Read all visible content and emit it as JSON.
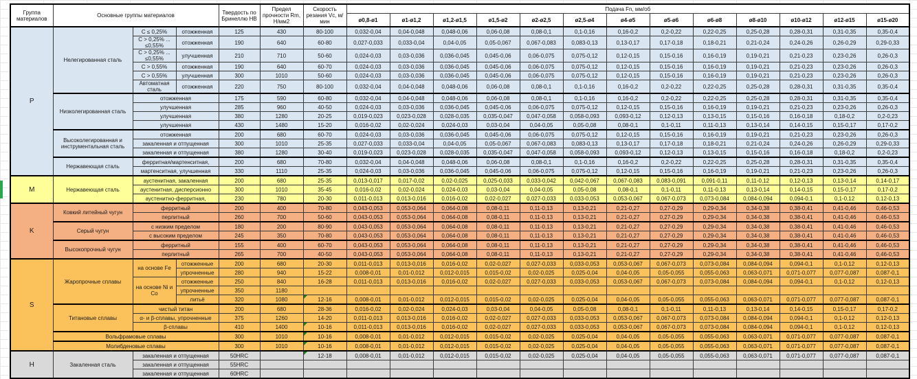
{
  "header": {
    "col_group": "Группа материалов",
    "col_main": "Основные группы материалов",
    "col_hardness": "Твердость по Бринеллю НВ",
    "col_strength": "Предел прочности Rm, Н/мм2",
    "col_speed": "Скорость резания Vc, м/мин",
    "col_feed": "Подача Fn, мм/об",
    "diameters": [
      "ø0,8-ø1",
      "ø1-ø1,2",
      "ø1,2-ø1,5",
      "ø1,5-ø2",
      "ø2-ø2,5",
      "ø2,5-ø4",
      "ø4-ø5",
      "ø5-ø6",
      "ø6-ø8",
      "ø8-ø10",
      "ø10-ø12",
      "ø12-ø15",
      "ø15-ø20"
    ]
  },
  "colors": {
    "section_p": "#d9e5f1",
    "section_m": "#ffff99",
    "section_k": "#f4b083",
    "section_s": "#fbc25b",
    "section_h": "#d9d9d9",
    "flag_triangle": "#1e7b1e",
    "edge_highlight": "#2ea44e"
  },
  "feed_profiles": {
    "A": [
      "0,032-0,04",
      "0,04-0,048",
      "0,048-0,06",
      "0,06-0,08",
      "0,08-0,1",
      "0,1-0,16",
      "0,16-0,2",
      "0,2-0,22",
      "0,22-0,25",
      "0,25-0,28",
      "0,28-0,31",
      "0,31-0,35",
      "0,35-0,4"
    ],
    "B": [
      "0,027-0,033",
      "0,033-0,04",
      "0,04-0,05",
      "0,05-0,067",
      "0,067-0,083",
      "0,083-0,13",
      "0,13-0,17",
      "0,17-0,18",
      "0,18-0,21",
      "0,21-0,24",
      "0,24-0,26",
      "0,26-0,29",
      "0,29-0,33"
    ],
    "C": [
      "0,024-0,03",
      "0,03-0,036",
      "0,036-0,045",
      "0,045-0,06",
      "0,06-0,075",
      "0,075-0,12",
      "0,12-0,15",
      "0,15-0,16",
      "0,16-0,19",
      "0,19-0,21",
      "0,21-0,23",
      "0,23-0,26",
      "0,26-0,3"
    ],
    "D": [
      "0,019-0,023",
      "0,023-0,028",
      "0,028-0,035",
      "0,035-0,047",
      "0,047-0,058",
      "0,058-0,093",
      "0,093-0,12",
      "0,12-0,13",
      "0,13-0,15",
      "0,15-0,16",
      "0,16-0,18",
      "0,18-0,2",
      "0,2-0,23"
    ],
    "E": [
      "0,016-0,02",
      "0,02-0,024",
      "0,024-0,03",
      "0,03-0,04",
      "0,04-0,05",
      "0,05-0,08",
      "0,08-0,1",
      "0,1-0,11",
      "0,11-0,13",
      "0,13-0,14",
      "0,14-0,15",
      "0,15-0,17",
      "0,17-0,2"
    ],
    "F": [
      "0,013-0,017",
      "0,017-0,02",
      "0,02-0,025",
      "0,025-0,033",
      "0,033-0,042",
      "0,042-0,067",
      "0,067-0,083",
      "0,083-0,091",
      "0,091-0,11",
      "0,11-0,12",
      "0,12-0,13",
      "0,13-0,14",
      "0,14-0,17"
    ],
    "G": [
      "0,011-0,013",
      "0,013-0,016",
      "0,016-0,02",
      "0,02-0,027",
      "0,027-0,033",
      "0,033-0,053",
      "0,053-0,067",
      "0,067-0,073",
      "0,073-0,084",
      "0,084-0,094",
      "0,094-0,1",
      "0,1-0,12",
      "0,12-0,13"
    ],
    "H": [
      "0,043-0,053",
      "0,053-0,064",
      "0,064-0,08",
      "0,08-0,11",
      "0,11-0,13",
      "0,13-0,21",
      "0,21-0,27",
      "0,27-0,29",
      "0,29-0,34",
      "0,34-0,38",
      "0,38-0,41",
      "0,41-0,46",
      "0,46-0,53"
    ],
    "I": [
      "0,008-0,01",
      "0,01-0,012",
      "0,012-0,015",
      "0,015-0,02",
      "0,02-0,025",
      "0,025-0,04",
      "0,04-0,05",
      "0,05-0,055",
      "0,055-0,063",
      "0,063-0,071",
      "0,071-0,077",
      "0,077-0,087",
      "0,087-0,1"
    ],
    "EMPTY": [
      "",
      "",
      "",
      "",
      "",
      "",
      "",
      "",
      "",
      "",
      "",
      "",
      ""
    ]
  },
  "rows": [
    {
      "sec": "p",
      "blk": true,
      "cells": [
        {
          "t": "P",
          "k": "grp",
          "rs": 15
        },
        {
          "t": "Нелегированная сталь",
          "k": "name",
          "rs": 6
        },
        {
          "t": "C ≤ 0,25%",
          "k": "sub"
        },
        {
          "t": "отожженная",
          "k": "treat"
        }
      ],
      "hb": "125",
      "rm": "430",
      "vc": "80-100",
      "feeds": "A"
    },
    {
      "sec": "p",
      "cells": [
        {
          "t": "C > 0,25% ... ≤0,55%",
          "k": "sub"
        },
        {
          "t": "отожженная",
          "k": "treat"
        }
      ],
      "hb": "190",
      "rm": "640",
      "vc": "60-80",
      "feeds": "B"
    },
    {
      "sec": "p",
      "cells": [
        {
          "t": "C > 0,25% ... ≤0,55%",
          "k": "sub"
        },
        {
          "t": "улучшенная",
          "k": "treat"
        }
      ],
      "hb": "210",
      "rm": "710",
      "vc": "50-60",
      "feeds": "C"
    },
    {
      "sec": "p",
      "cells": [
        {
          "t": "C > 0,55%",
          "k": "sub"
        },
        {
          "t": "отожженная",
          "k": "treat"
        }
      ],
      "hb": "190",
      "rm": "640",
      "vc": "60-70",
      "feeds": "C"
    },
    {
      "sec": "p",
      "cells": [
        {
          "t": "C > 0,55%",
          "k": "sub"
        },
        {
          "t": "улучшенная",
          "k": "treat"
        }
      ],
      "hb": "300",
      "rm": "1010",
      "vc": "50-60",
      "feeds": "C"
    },
    {
      "sec": "p",
      "cells": [
        {
          "t": "Автоматная сталь",
          "k": "sub"
        },
        {
          "t": "отожженная",
          "k": "treat"
        }
      ],
      "hb": "220",
      "rm": "750",
      "vc": "80-100",
      "feeds": "A"
    },
    {
      "sec": "p",
      "blk": true,
      "cells": [
        {
          "t": "Низколегированная сталь",
          "k": "name",
          "rs": 4
        },
        {
          "t": "отожженная",
          "k": "treat",
          "cs": 2
        }
      ],
      "hb": "175",
      "rm": "590",
      "vc": "60-80",
      "feeds": "A"
    },
    {
      "sec": "p",
      "cells": [
        {
          "t": "улучшенная",
          "k": "treat",
          "cs": 2
        }
      ],
      "hb": "285",
      "rm": "960",
      "vc": "40-50",
      "feeds": "C"
    },
    {
      "sec": "p",
      "cells": [
        {
          "t": "улучшенная",
          "k": "treat",
          "cs": 2
        }
      ],
      "hb": "380",
      "rm": "1280",
      "vc": "20-25",
      "feeds": "D"
    },
    {
      "sec": "p",
      "cells": [
        {
          "t": "улучшенная",
          "k": "treat",
          "cs": 2
        }
      ],
      "hb": "430",
      "rm": "1480",
      "vc": "15-20",
      "feeds": "E"
    },
    {
      "sec": "p",
      "blk": true,
      "cells": [
        {
          "t": "Высоколегированная и инструментальная сталь",
          "k": "name",
          "rs": 3
        },
        {
          "t": "отожженная",
          "k": "treat",
          "cs": 2
        }
      ],
      "hb": "200",
      "rm": "680",
      "vc": "60-70",
      "feeds": "C"
    },
    {
      "sec": "p",
      "cells": [
        {
          "t": "закаленная и отпущенная",
          "k": "treat",
          "cs": 2
        }
      ],
      "hb": "300",
      "rm": "1010",
      "vc": "25-35",
      "feeds": "B"
    },
    {
      "sec": "p",
      "cells": [
        {
          "t": "закаленная и отпущенная",
          "k": "treat",
          "cs": 2
        }
      ],
      "hb": "380",
      "rm": "1280",
      "vc": "30-40",
      "feeds": "D"
    },
    {
      "sec": "p",
      "blk": true,
      "cells": [
        {
          "t": "Нержавеющая сталь",
          "k": "name",
          "rs": 2
        },
        {
          "t": "ферритная/мартенситная,",
          "k": "treat",
          "cs": 2
        }
      ],
      "hb": "200",
      "rm": "680",
      "vc": "70-80",
      "feeds": "A"
    },
    {
      "sec": "p",
      "cells": [
        {
          "t": "мартенситная, улучшенная",
          "k": "treat",
          "cs": 2
        }
      ],
      "hb": "330",
      "rm": "1110",
      "vc": "25-35",
      "feeds": "C"
    },
    {
      "sec": "m",
      "blk": true,
      "cells": [
        {
          "t": "M",
          "k": "grp",
          "rs": 3
        },
        {
          "t": "Нержавеющая сталь",
          "k": "name",
          "rs": 3
        },
        {
          "t": "аустенитная, закаленная",
          "k": "treat",
          "cs": 2
        }
      ],
      "hb": "200",
      "rm": "680",
      "vc": "25-35",
      "feeds": "F"
    },
    {
      "sec": "m",
      "cells": [
        {
          "t": "аустенитная, дисперсионно",
          "k": "treat",
          "cs": 2
        }
      ],
      "hb": "300",
      "rm": "1010",
      "vc": "35-45",
      "feeds": "E"
    },
    {
      "sec": "m",
      "cells": [
        {
          "t": "аустенитно-ферритная,",
          "k": "treat",
          "cs": 2
        }
      ],
      "hb": "230",
      "rm": "780",
      "vc": "20-30",
      "feeds": "G"
    },
    {
      "sec": "k",
      "blk": true,
      "cells": [
        {
          "t": "K",
          "k": "grp",
          "rs": 6
        },
        {
          "t": "Ковкий литейный чугун",
          "k": "name",
          "rs": 2
        },
        {
          "t": "ферритный",
          "k": "treat",
          "cs": 2
        }
      ],
      "hb": "200",
      "rm": "400",
      "vc": "70-80",
      "feeds": "H"
    },
    {
      "sec": "k",
      "cells": [
        {
          "t": "перлитный",
          "k": "treat",
          "cs": 2
        }
      ],
      "hb": "260",
      "rm": "700",
      "vc": "50-60",
      "feeds": "H"
    },
    {
      "sec": "k",
      "blk": true,
      "cells": [
        {
          "t": "Серый чугун",
          "k": "name",
          "rs": 2
        },
        {
          "t": "с низким пределом",
          "k": "treat",
          "cs": 2
        }
      ],
      "hb": "180",
      "rm": "200",
      "vc": "80-90",
      "feeds": "H"
    },
    {
      "sec": "k",
      "cells": [
        {
          "t": "с высоким пределом",
          "k": "treat",
          "cs": 2
        }
      ],
      "hb": "245",
      "rm": "350",
      "vc": "70-80",
      "feeds": "H"
    },
    {
      "sec": "k",
      "blk": true,
      "cells": [
        {
          "t": "Высокопрочный чугун",
          "k": "name",
          "rs": 2
        },
        {
          "t": "ферритный",
          "k": "treat",
          "cs": 2
        }
      ],
      "hb": "155",
      "rm": "400",
      "vc": "60-70",
      "feeds": "H"
    },
    {
      "sec": "k",
      "cells": [
        {
          "t": "перлитный",
          "k": "treat",
          "cs": 2
        }
      ],
      "hb": "265",
      "rm": "700",
      "vc": "40-50",
      "feeds": "H"
    },
    {
      "sec": "s",
      "blk": true,
      "cells": [
        {
          "t": "S",
          "k": "grp",
          "rs": 10
        },
        {
          "t": "Жаропрочные сплавы",
          "k": "name",
          "rs": 5
        },
        {
          "t": "на основе Fe",
          "k": "sub",
          "rs": 2
        },
        {
          "t": "отожженные",
          "k": "treat"
        }
      ],
      "hb": "200",
      "rm": "680",
      "vc": "20-30",
      "feeds": "G"
    },
    {
      "sec": "s",
      "cells": [
        {
          "t": "упрочненные",
          "k": "treat"
        }
      ],
      "hb": "280",
      "rm": "940",
      "vc": "15-22",
      "feeds": "I"
    },
    {
      "sec": "s",
      "cells": [
        {
          "t": "на основе Ni и Co",
          "k": "sub",
          "rs": 3
        },
        {
          "t": "отожженные",
          "k": "treat"
        }
      ],
      "hb": "250",
      "rm": "840",
      "vc": "16-28",
      "feeds": "G"
    },
    {
      "sec": "s",
      "cells": [
        {
          "t": "упрочненные",
          "k": "treat"
        }
      ],
      "hb": "350",
      "rm": "1180",
      "vc": "",
      "feeds": "EMPTY"
    },
    {
      "sec": "s",
      "cells": [
        {
          "t": "литьё",
          "k": "treat"
        }
      ],
      "hb": "320",
      "rm": "1080",
      "vc": "12-16",
      "vc_flag": true,
      "feeds": "I"
    },
    {
      "sec": "s",
      "blk": true,
      "cells": [
        {
          "t": "Титановые сплавы",
          "k": "name",
          "rs": 3
        },
        {
          "t": "чистый титан",
          "k": "treat",
          "cs": 2
        }
      ],
      "hb": "200",
      "rm": "680",
      "vc": "28-36",
      "feeds": "E"
    },
    {
      "sec": "s",
      "cells": [
        {
          "t": "α- и β-сплавы, упрочненные",
          "k": "treat",
          "cs": 2
        }
      ],
      "hb": "375",
      "rm": "1260",
      "vc": "14-20",
      "feeds": "G"
    },
    {
      "sec": "s",
      "cells": [
        {
          "t": "β-сплавы",
          "k": "treat",
          "cs": 2
        }
      ],
      "hb": "410",
      "rm": "1400",
      "vc": "10-16",
      "vc_flag": true,
      "feeds": "G"
    },
    {
      "sec": "s",
      "blk": true,
      "cells": [
        {
          "t": "Вольфрамовые сплавы",
          "k": "name",
          "cs": 3
        }
      ],
      "hb": "300",
      "rm": "1010",
      "vc": "10-16",
      "vc_flag": true,
      "feeds": "I"
    },
    {
      "sec": "s",
      "blk": true,
      "cells": [
        {
          "t": "Молибденовые сплавы",
          "k": "name",
          "cs": 3
        }
      ],
      "hb": "300",
      "rm": "1010",
      "vc": "10-16",
      "vc_flag": true,
      "feeds": "I"
    },
    {
      "sec": "h",
      "blk": true,
      "cells": [
        {
          "t": "H",
          "k": "grp",
          "rs": 3
        },
        {
          "t": "Закаленная сталь",
          "k": "name",
          "rs": 3
        },
        {
          "t": "закаленная и отпущенная",
          "k": "treat",
          "cs": 2
        }
      ],
      "hb": "50HRC",
      "rm": "",
      "vc": "12-18",
      "vc_flag": true,
      "feeds": "I"
    },
    {
      "sec": "h",
      "cells": [
        {
          "t": "закаленная и отпущенная",
          "k": "treat",
          "cs": 2
        }
      ],
      "hb": "55HRC",
      "rm": "",
      "vc": "",
      "feeds": "EMPTY"
    },
    {
      "sec": "h",
      "cells": [
        {
          "t": "закаленная и отпущенная",
          "k": "treat",
          "cs": 2
        }
      ],
      "hb": "60HRC",
      "rm": "",
      "vc": "",
      "feeds": "EMPTY"
    }
  ]
}
